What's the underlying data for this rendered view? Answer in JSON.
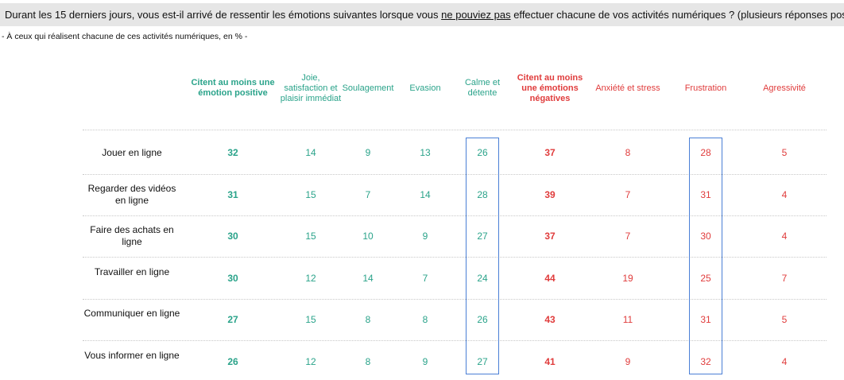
{
  "header": {
    "question_before": "Durant les 15 derniers jours, vous est-il arrivé de ressentir les émotions suivantes lorsque vous ",
    "question_underlined": "ne pouviez pas",
    "question_after": " effectuer chacune de vos activités numériques ? (plusieurs réponses possibles)",
    "subtitle": "- À ceux qui réalisent chacune de ces activités numériques, en % -"
  },
  "colors": {
    "positive": "#2aa38a",
    "negative": "#e03c3c",
    "highlight": "#4a7fd6"
  },
  "chart_data": {
    "type": "table",
    "unit": "%",
    "columns": [
      {
        "label": "Citent au moins une émotion positive",
        "group": "positive",
        "bold": true
      },
      {
        "label": "Joie, satisfaction et plaisir immédiat",
        "group": "positive",
        "bold": false
      },
      {
        "label": "Soulagement",
        "group": "positive",
        "bold": false
      },
      {
        "label": "Evasion",
        "group": "positive",
        "bold": false
      },
      {
        "label": "Calme et détente",
        "group": "positive",
        "bold": false,
        "highlighted": true
      },
      {
        "label": "Citent au moins une émotions négatives",
        "group": "negative",
        "bold": true
      },
      {
        "label": "Anxiété et stress",
        "group": "negative",
        "bold": false
      },
      {
        "label": "Frustration",
        "group": "negative",
        "bold": false,
        "highlighted": true
      },
      {
        "label": "Agressivité",
        "group": "negative",
        "bold": false
      }
    ],
    "rows": [
      {
        "label": "Jouer en ligne",
        "values": [
          32,
          14,
          9,
          13,
          26,
          37,
          8,
          28,
          5
        ]
      },
      {
        "label": "Regarder des vidéos en ligne",
        "values": [
          31,
          15,
          7,
          14,
          28,
          39,
          7,
          31,
          4
        ]
      },
      {
        "label": "Faire des achats en ligne",
        "values": [
          30,
          15,
          10,
          9,
          27,
          37,
          7,
          30,
          4
        ]
      },
      {
        "label": "Travailler en ligne",
        "values": [
          30,
          12,
          14,
          7,
          24,
          44,
          19,
          25,
          7
        ]
      },
      {
        "label": "Communiquer en ligne",
        "values": [
          27,
          15,
          8,
          8,
          26,
          43,
          11,
          31,
          5
        ]
      },
      {
        "label": "Vous informer en ligne",
        "values": [
          26,
          12,
          8,
          9,
          27,
          41,
          9,
          32,
          4
        ]
      }
    ]
  }
}
